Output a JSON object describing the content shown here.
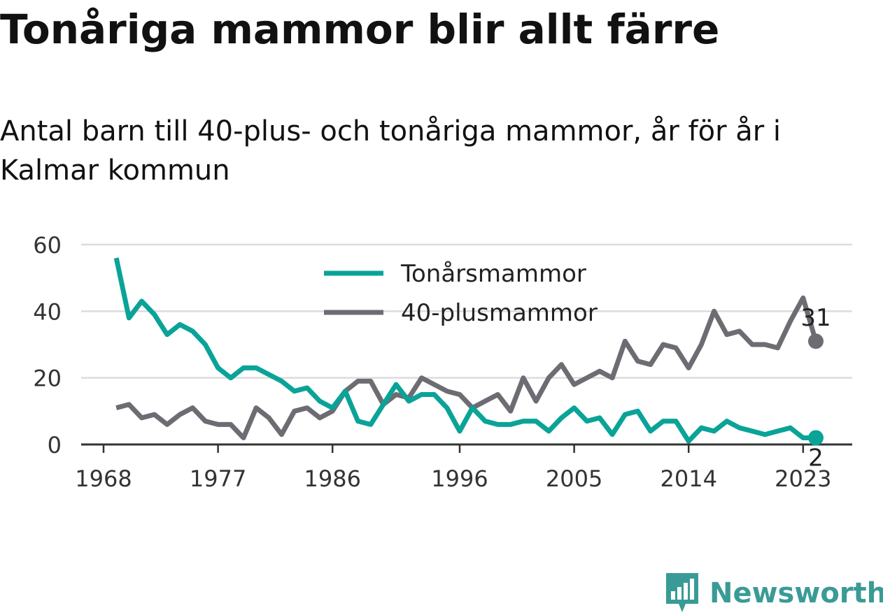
{
  "title": "Tonåriga mammor blir allt färre",
  "subtitle": "Antal barn till 40-plus- och tonåriga mammor, år för år i Kalmar kommun",
  "brand": {
    "name": "Newsworthy",
    "color": "#3a9b96"
  },
  "chart_data": {
    "type": "line",
    "title": "Tonåriga mammor blir allt färre",
    "subtitle": "Antal barn till 40-plus- och tonåriga mammor, år för år i Kalmar kommun",
    "xlabel": "",
    "ylabel": "",
    "x_ticks": [
      "1968",
      "1977",
      "1986",
      "1996",
      "2005",
      "2014",
      "2023"
    ],
    "y_ticks": [
      "0",
      "20",
      "40",
      "60"
    ],
    "ylim": [
      0,
      60
    ],
    "grid": true,
    "legend_position": "top-center",
    "x": [
      1969,
      1970,
      1971,
      1972,
      1973,
      1974,
      1975,
      1976,
      1977,
      1978,
      1979,
      1980,
      1981,
      1982,
      1983,
      1984,
      1985,
      1986,
      1987,
      1988,
      1989,
      1990,
      1991,
      1992,
      1993,
      1994,
      1995,
      1996,
      1997,
      1998,
      1999,
      2000,
      2001,
      2002,
      2003,
      2004,
      2005,
      2006,
      2007,
      2008,
      2009,
      2010,
      2011,
      2012,
      2013,
      2014,
      2015,
      2016,
      2017,
      2018,
      2019,
      2020,
      2021,
      2022,
      2023,
      2024
    ],
    "series": [
      {
        "name": "Tonårsmammor",
        "color": "#0aa398",
        "values": [
          56,
          38,
          43,
          39,
          33,
          36,
          34,
          30,
          23,
          20,
          23,
          23,
          21,
          19,
          16,
          17,
          13,
          11,
          16,
          7,
          6,
          12,
          18,
          13,
          15,
          15,
          11,
          4,
          11,
          7,
          6,
          6,
          7,
          7,
          4,
          8,
          11,
          7,
          8,
          3,
          9,
          10,
          4,
          7,
          7,
          1,
          5,
          4,
          7,
          5,
          4,
          3,
          4,
          5,
          2,
          2
        ],
        "end_label": "2"
      },
      {
        "name": "40-plusmammor",
        "color": "#6e6c73",
        "values": [
          11,
          12,
          8,
          9,
          6,
          9,
          11,
          7,
          6,
          6,
          2,
          11,
          8,
          3,
          10,
          11,
          8,
          10,
          16,
          19,
          19,
          12,
          15,
          14,
          20,
          18,
          16,
          15,
          11,
          13,
          15,
          10,
          20,
          13,
          20,
          24,
          18,
          20,
          22,
          20,
          31,
          25,
          24,
          30,
          29,
          23,
          30,
          40,
          33,
          34,
          30,
          30,
          29,
          37,
          44,
          31
        ],
        "end_label": "31"
      }
    ]
  }
}
